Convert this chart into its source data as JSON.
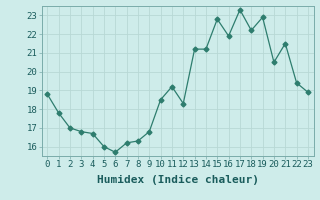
{
  "x": [
    0,
    1,
    2,
    3,
    4,
    5,
    6,
    7,
    8,
    9,
    10,
    11,
    12,
    13,
    14,
    15,
    16,
    17,
    18,
    19,
    20,
    21,
    22,
    23
  ],
  "y": [
    18.8,
    17.8,
    17.0,
    16.8,
    16.7,
    16.0,
    15.7,
    16.2,
    16.3,
    16.8,
    18.5,
    19.2,
    18.3,
    21.2,
    21.2,
    22.8,
    21.9,
    23.3,
    22.2,
    22.9,
    20.5,
    21.5,
    19.4,
    18.9
  ],
  "line_color": "#2e7d6e",
  "marker": "D",
  "marker_size": 2.5,
  "bg_color": "#ceecea",
  "grid_color": "#b8d8d5",
  "xlabel": "Humidex (Indice chaleur)",
  "xlabel_fontsize": 8,
  "xlim": [
    -0.5,
    23.5
  ],
  "ylim": [
    15.5,
    23.5
  ],
  "yticks": [
    16,
    17,
    18,
    19,
    20,
    21,
    22,
    23
  ],
  "xticks": [
    0,
    1,
    2,
    3,
    4,
    5,
    6,
    7,
    8,
    9,
    10,
    11,
    12,
    13,
    14,
    15,
    16,
    17,
    18,
    19,
    20,
    21,
    22,
    23
  ],
  "xtick_labels": [
    "0",
    "1",
    "2",
    "3",
    "4",
    "5",
    "6",
    "7",
    "8",
    "9",
    "10",
    "11",
    "12",
    "13",
    "14",
    "15",
    "16",
    "17",
    "18",
    "19",
    "20",
    "21",
    "22",
    "23"
  ],
  "tick_fontsize": 6.5,
  "spine_color": "#7aabaa"
}
